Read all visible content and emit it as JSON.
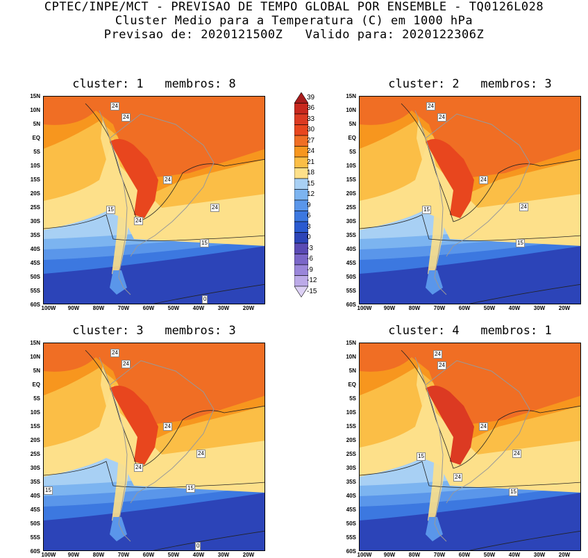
{
  "header": {
    "line1": "CPTEC/INPE/MCT - PREVISAO DE TEMPO GLOBAL POR ENSEMBLE - TQ0126L028",
    "line2": "Cluster Medio para a Temperatura (C) em 1000 hPa",
    "line3": "Previsao de: 2020121500Z   Valido para: 2020122306Z"
  },
  "axes": {
    "lat_labels": [
      "15N",
      "10N",
      "5N",
      "EQ",
      "5S",
      "10S",
      "15S",
      "20S",
      "25S",
      "30S",
      "35S",
      "40S",
      "45S",
      "50S",
      "55S",
      "60S"
    ],
    "lon_labels": [
      "100W",
      "90W",
      "80W",
      "70W",
      "60W",
      "50W",
      "40W",
      "30W",
      "20W"
    ]
  },
  "colorbar": {
    "labels": [
      "39",
      "36",
      "33",
      "30",
      "27",
      "24",
      "21",
      "18",
      "15",
      "12",
      "9",
      "6",
      "3",
      "0",
      "-3",
      "-6",
      "-9",
      "-12",
      "-15"
    ],
    "colors": [
      "#a81c1c",
      "#c8281e",
      "#dc3a22",
      "#e8461e",
      "#f06e24",
      "#f7961e",
      "#fbbe46",
      "#fde08a",
      "#a8d0f4",
      "#7cb4f0",
      "#5a96ea",
      "#3c78e0",
      "#2a5ad0",
      "#2c44b8",
      "#5a4ab4",
      "#7a66c8",
      "#9a86da",
      "#bcaae8",
      "#dcd0f4"
    ],
    "range": [
      -15,
      39
    ],
    "step": 3
  },
  "panels": [
    {
      "id": "c1",
      "title": "cluster: 1   membros: 8",
      "contour_labels": [
        "24",
        "24",
        "24",
        "24",
        "24",
        "15",
        "15",
        "0"
      ]
    },
    {
      "id": "c2",
      "title": "cluster: 2   membros: 3",
      "contour_labels": [
        "24",
        "24",
        "24",
        "24",
        "15",
        "15"
      ]
    },
    {
      "id": "c3",
      "title": "cluster: 3   membros: 3",
      "contour_labels": [
        "24",
        "24",
        "24",
        "24",
        "24",
        "15",
        "15",
        "0"
      ]
    },
    {
      "id": "c4",
      "title": "cluster: 4   membros: 1",
      "contour_labels": [
        "24",
        "24",
        "24",
        "24",
        "24",
        "15",
        "15"
      ]
    }
  ]
}
